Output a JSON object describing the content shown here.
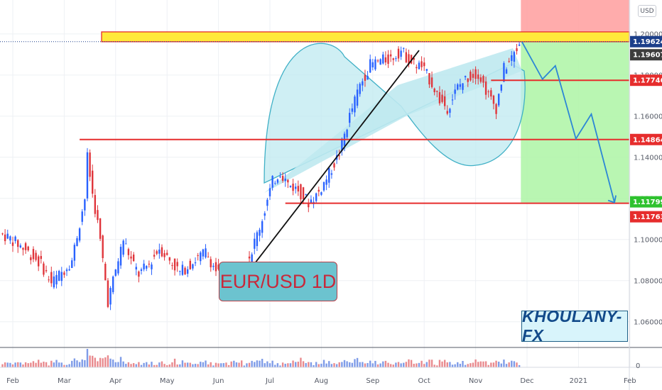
{
  "header": {
    "currency_label": "USD"
  },
  "annotations": {
    "title_box": "EUR/USD 1D",
    "brand": "KHOULANY-FX"
  },
  "chart_data": {
    "type": "candlestick",
    "symbol": "EUR/USD",
    "timeframe": "1D",
    "x_tick_labels": [
      "Feb",
      "Mar",
      "Apr",
      "May",
      "Jun",
      "Jul",
      "Aug",
      "Sep",
      "Oct",
      "Nov",
      "Dec",
      "2021",
      "Feb"
    ],
    "y_tick_labels": [
      "1.20000",
      "1.18000",
      "1.16000",
      "1.14000",
      "1.12000",
      "1.10000",
      "1.08000",
      "1.06000"
    ],
    "y_ticks": [
      1.2,
      1.18,
      1.16,
      1.14,
      1.12,
      1.1,
      1.08,
      1.06
    ],
    "ylim": [
      1.0475,
      1.2165
    ],
    "volume_axis_label": "0",
    "price_tags": [
      {
        "value": 1.19624,
        "label": "1.19624",
        "color": "#1c3f8a"
      },
      {
        "value": 1.19607,
        "label": "1.19607",
        "color": "#3d3d3d"
      },
      {
        "value": 1.17746,
        "label": "1.17746",
        "color": "#e62d2d"
      },
      {
        "value": 1.14864,
        "label": "1.14864",
        "color": "#e62d2d"
      },
      {
        "value": 1.11799,
        "label": "1.11799",
        "color": "#2ec22e"
      },
      {
        "value": 1.11763,
        "label": "1.11763",
        "color": "#e62d2d"
      }
    ],
    "resistance_zone": [
      1.1962,
      1.201
    ],
    "horizontal_levels": [
      {
        "value": 1.17746,
        "from_month": 9.3
      },
      {
        "value": 1.14864,
        "from_month": 1.3
      },
      {
        "value": 1.11763,
        "from_month": 5.3
      }
    ],
    "trendline": {
      "x1": 4.4,
      "y1": 1.0785,
      "x2": 7.9,
      "y2": 1.192
    },
    "projection_path": [
      [
        9.9,
        1.1962
      ],
      [
        10.3,
        1.178
      ],
      [
        10.55,
        1.1845
      ],
      [
        10.95,
        1.149
      ],
      [
        11.25,
        1.161
      ],
      [
        11.7,
        1.118
      ]
    ],
    "short_position": {
      "entry": 1.19624,
      "stop": 1.2165,
      "target": 1.11799,
      "start_month": 9.88
    },
    "series": [
      {
        "name": "price",
        "points": [
          [
            -0.2,
            1.103
          ],
          [
            0.0,
            1.1005
          ],
          [
            0.3,
            1.095
          ],
          [
            0.6,
            1.088
          ],
          [
            0.8,
            1.079
          ],
          [
            1.0,
            1.084
          ],
          [
            1.2,
            1.09
          ],
          [
            1.35,
            1.108
          ],
          [
            1.45,
            1.12
          ],
          [
            1.5,
            1.14
          ],
          [
            1.6,
            1.122
          ],
          [
            1.7,
            1.108
          ],
          [
            1.8,
            1.09
          ],
          [
            1.9,
            1.07
          ],
          [
            2.0,
            1.08
          ],
          [
            2.1,
            1.09
          ],
          [
            2.2,
            1.1
          ],
          [
            2.35,
            1.09
          ],
          [
            2.5,
            1.083
          ],
          [
            2.7,
            1.088
          ],
          [
            2.9,
            1.096
          ],
          [
            3.1,
            1.09
          ],
          [
            3.3,
            1.084
          ],
          [
            3.5,
            1.088
          ],
          [
            3.8,
            1.094
          ],
          [
            4.0,
            1.085
          ],
          [
            4.2,
            1.08
          ],
          [
            4.5,
            1.083
          ],
          [
            4.7,
            1.095
          ],
          [
            4.9,
            1.11
          ],
          [
            5.1,
            1.128
          ],
          [
            5.25,
            1.133
          ],
          [
            5.4,
            1.127
          ],
          [
            5.6,
            1.124
          ],
          [
            5.8,
            1.118
          ],
          [
            6.0,
            1.123
          ],
          [
            6.2,
            1.132
          ],
          [
            6.4,
            1.142
          ],
          [
            6.6,
            1.16
          ],
          [
            6.8,
            1.175
          ],
          [
            7.0,
            1.185
          ],
          [
            7.2,
            1.187
          ],
          [
            7.4,
            1.188
          ],
          [
            7.6,
            1.192
          ],
          [
            7.8,
            1.186
          ],
          [
            8.0,
            1.184
          ],
          [
            8.2,
            1.176
          ],
          [
            8.35,
            1.168
          ],
          [
            8.5,
            1.164
          ],
          [
            8.7,
            1.174
          ],
          [
            8.9,
            1.179
          ],
          [
            9.1,
            1.181
          ],
          [
            9.3,
            1.17
          ],
          [
            9.45,
            1.164
          ],
          [
            9.6,
            1.183
          ],
          [
            9.75,
            1.188
          ],
          [
            9.9,
            1.195
          ]
        ]
      }
    ]
  }
}
